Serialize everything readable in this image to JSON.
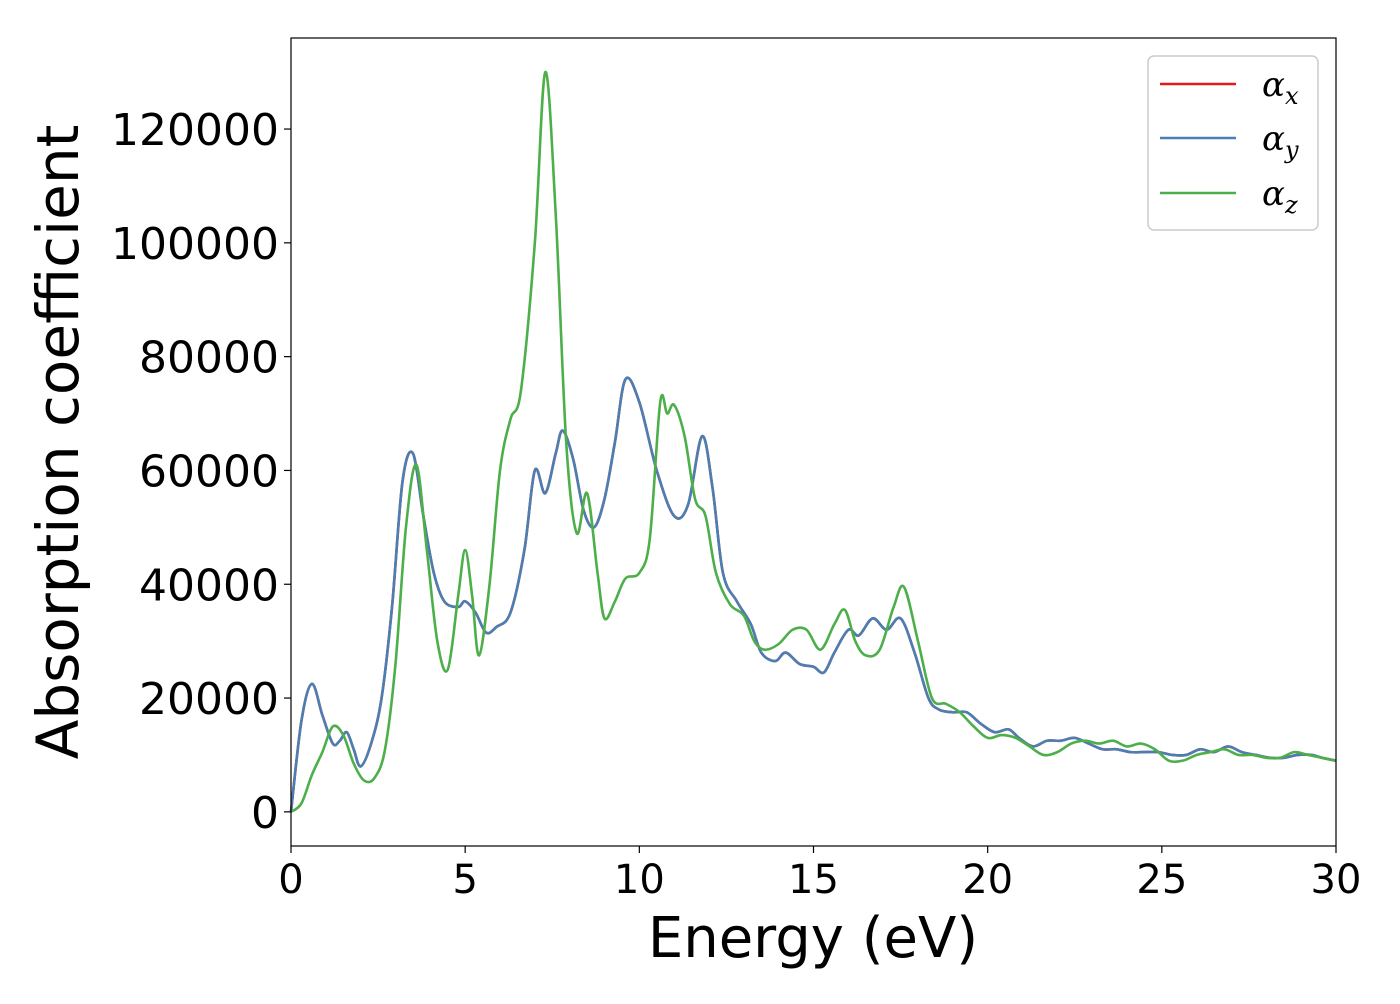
{
  "chart_data": {
    "type": "line",
    "xlabel": "Energy (eV)",
    "ylabel": "Absorption coefficient",
    "xlim": [
      0,
      30
    ],
    "ylim": [
      -6000,
      136000
    ],
    "xticks": [
      "0",
      "5",
      "10",
      "15",
      "20",
      "25",
      "30"
    ],
    "yticks": [
      "0",
      "20000",
      "40000",
      "60000",
      "80000",
      "100000",
      "120000"
    ],
    "grid": false,
    "legend_position": "top-right",
    "series": [
      {
        "name": "αx",
        "legend_base": "α",
        "legend_sub": "x",
        "color": "#e41a1c",
        "x": [
          0,
          0.3,
          0.6,
          0.9,
          1.2,
          1.4,
          1.6,
          1.8,
          2.0,
          2.3,
          2.6,
          2.9,
          3.2,
          3.5,
          3.8,
          4.1,
          4.4,
          4.8,
          5.0,
          5.3,
          5.6,
          5.9,
          6.3,
          6.7,
          7.0,
          7.3,
          7.6,
          7.8,
          8.1,
          8.4,
          8.7,
          9.0,
          9.3,
          9.6,
          10.0,
          10.5,
          11.0,
          11.4,
          11.8,
          12.1,
          12.4,
          12.8,
          13.2,
          13.5,
          13.9,
          14.2,
          14.6,
          15.0,
          15.3,
          15.6,
          16.0,
          16.3,
          16.7,
          17.1,
          17.5,
          17.9,
          18.3,
          18.6,
          19.0,
          19.4,
          19.8,
          20.2,
          20.6,
          20.9,
          21.3,
          21.7,
          22.1,
          22.5,
          22.9,
          23.3,
          23.7,
          24.1,
          24.5,
          24.9,
          25.3,
          25.7,
          26.1,
          26.5,
          26.9,
          27.3,
          27.7,
          28.1,
          28.5,
          28.9,
          29.3,
          29.6,
          30.0
        ],
        "y": [
          0,
          16000,
          22500,
          17000,
          12000,
          12500,
          14000,
          11000,
          8000,
          12000,
          20000,
          36000,
          58000,
          63000,
          52000,
          42000,
          37000,
          36000,
          37000,
          35000,
          31500,
          32500,
          35000,
          46000,
          60000,
          56000,
          63000,
          67000,
          62000,
          53000,
          50000,
          55000,
          65000,
          76000,
          72000,
          60000,
          52000,
          54000,
          66000,
          57000,
          42000,
          37000,
          33000,
          28000,
          26500,
          28000,
          26000,
          25500,
          24500,
          28000,
          32000,
          31000,
          34000,
          32000,
          34000,
          28000,
          20000,
          18000,
          17500,
          17500,
          15500,
          14000,
          14500,
          13000,
          11500,
          12500,
          12500,
          13000,
          12000,
          11000,
          11000,
          10500,
          10500,
          10500,
          10000,
          10000,
          11000,
          10500,
          11500,
          10500,
          10000,
          9500,
          9500,
          10000,
          10000,
          9500,
          9000
        ]
      },
      {
        "name": "αy",
        "legend_base": "α",
        "legend_sub": "y",
        "color": "#4a7fb4",
        "x": [
          0,
          0.3,
          0.6,
          0.9,
          1.2,
          1.4,
          1.6,
          1.8,
          2.0,
          2.3,
          2.6,
          2.9,
          3.2,
          3.5,
          3.8,
          4.1,
          4.4,
          4.8,
          5.0,
          5.3,
          5.6,
          5.9,
          6.3,
          6.7,
          7.0,
          7.3,
          7.6,
          7.8,
          8.1,
          8.4,
          8.7,
          9.0,
          9.3,
          9.6,
          10.0,
          10.5,
          11.0,
          11.4,
          11.8,
          12.1,
          12.4,
          12.8,
          13.2,
          13.5,
          13.9,
          14.2,
          14.6,
          15.0,
          15.3,
          15.6,
          16.0,
          16.3,
          16.7,
          17.1,
          17.5,
          17.9,
          18.3,
          18.6,
          19.0,
          19.4,
          19.8,
          20.2,
          20.6,
          20.9,
          21.3,
          21.7,
          22.1,
          22.5,
          22.9,
          23.3,
          23.7,
          24.1,
          24.5,
          24.9,
          25.3,
          25.7,
          26.1,
          26.5,
          26.9,
          27.3,
          27.7,
          28.1,
          28.5,
          28.9,
          29.3,
          29.6,
          30.0
        ],
        "y": [
          0,
          16000,
          22500,
          17000,
          12000,
          12500,
          14000,
          11000,
          8000,
          12000,
          20000,
          36000,
          58000,
          63000,
          52000,
          42000,
          37000,
          36000,
          37000,
          35000,
          31500,
          32500,
          35000,
          46000,
          60000,
          56000,
          63000,
          67000,
          62000,
          53000,
          50000,
          55000,
          65000,
          76000,
          72000,
          60000,
          52000,
          54000,
          66000,
          57000,
          42000,
          37000,
          33000,
          28000,
          26500,
          28000,
          26000,
          25500,
          24500,
          28000,
          32000,
          31000,
          34000,
          32000,
          34000,
          28000,
          20000,
          18000,
          17500,
          17500,
          15500,
          14000,
          14500,
          13000,
          11500,
          12500,
          12500,
          13000,
          12000,
          11000,
          11000,
          10500,
          10500,
          10500,
          10000,
          10000,
          11000,
          10500,
          11500,
          10500,
          10000,
          9500,
          9500,
          10000,
          10000,
          9500,
          9000
        ]
      },
      {
        "name": "αz",
        "legend_base": "α",
        "legend_sub": "z",
        "color": "#4daf4a",
        "x": [
          0,
          0.3,
          0.6,
          0.9,
          1.2,
          1.5,
          1.8,
          2.1,
          2.4,
          2.7,
          3.0,
          3.3,
          3.6,
          3.9,
          4.2,
          4.5,
          4.8,
          5.0,
          5.2,
          5.4,
          5.7,
          6.0,
          6.3,
          6.6,
          7.0,
          7.3,
          7.6,
          7.9,
          8.2,
          8.5,
          8.8,
          9.0,
          9.3,
          9.6,
          10.0,
          10.3,
          10.6,
          10.8,
          11.0,
          11.3,
          11.6,
          11.9,
          12.2,
          12.6,
          13.0,
          13.3,
          13.6,
          14.0,
          14.4,
          14.8,
          15.2,
          15.6,
          15.9,
          16.2,
          16.5,
          16.9,
          17.3,
          17.6,
          18.0,
          18.4,
          18.8,
          19.2,
          19.6,
          20.0,
          20.4,
          20.8,
          21.2,
          21.6,
          22.0,
          22.4,
          22.8,
          23.2,
          23.6,
          24.0,
          24.4,
          24.8,
          25.2,
          25.6,
          26.0,
          26.4,
          26.8,
          27.2,
          27.6,
          28.0,
          28.4,
          28.8,
          29.2,
          29.6,
          30.0
        ],
        "y": [
          0,
          1500,
          6500,
          10500,
          15000,
          13500,
          8500,
          5500,
          6000,
          11000,
          26000,
          50000,
          61000,
          46000,
          30000,
          25000,
          38000,
          46000,
          38000,
          27500,
          40000,
          60000,
          69000,
          74000,
          100000,
          130000,
          105000,
          65000,
          49000,
          56000,
          42000,
          34000,
          37000,
          41000,
          42000,
          48000,
          72000,
          70000,
          71500,
          66000,
          55000,
          52000,
          42000,
          36500,
          34500,
          30000,
          28500,
          29500,
          32000,
          32000,
          28500,
          33000,
          35500,
          30000,
          27500,
          28500,
          36000,
          39500,
          30000,
          20000,
          19000,
          17500,
          15000,
          13000,
          13500,
          13000,
          11500,
          10000,
          10500,
          12000,
          12500,
          12000,
          12500,
          11500,
          12000,
          11000,
          9000,
          9000,
          10000,
          10500,
          11000,
          10000,
          10000,
          9500,
          9500,
          10500,
          10000,
          9500,
          9000
        ]
      }
    ]
  }
}
